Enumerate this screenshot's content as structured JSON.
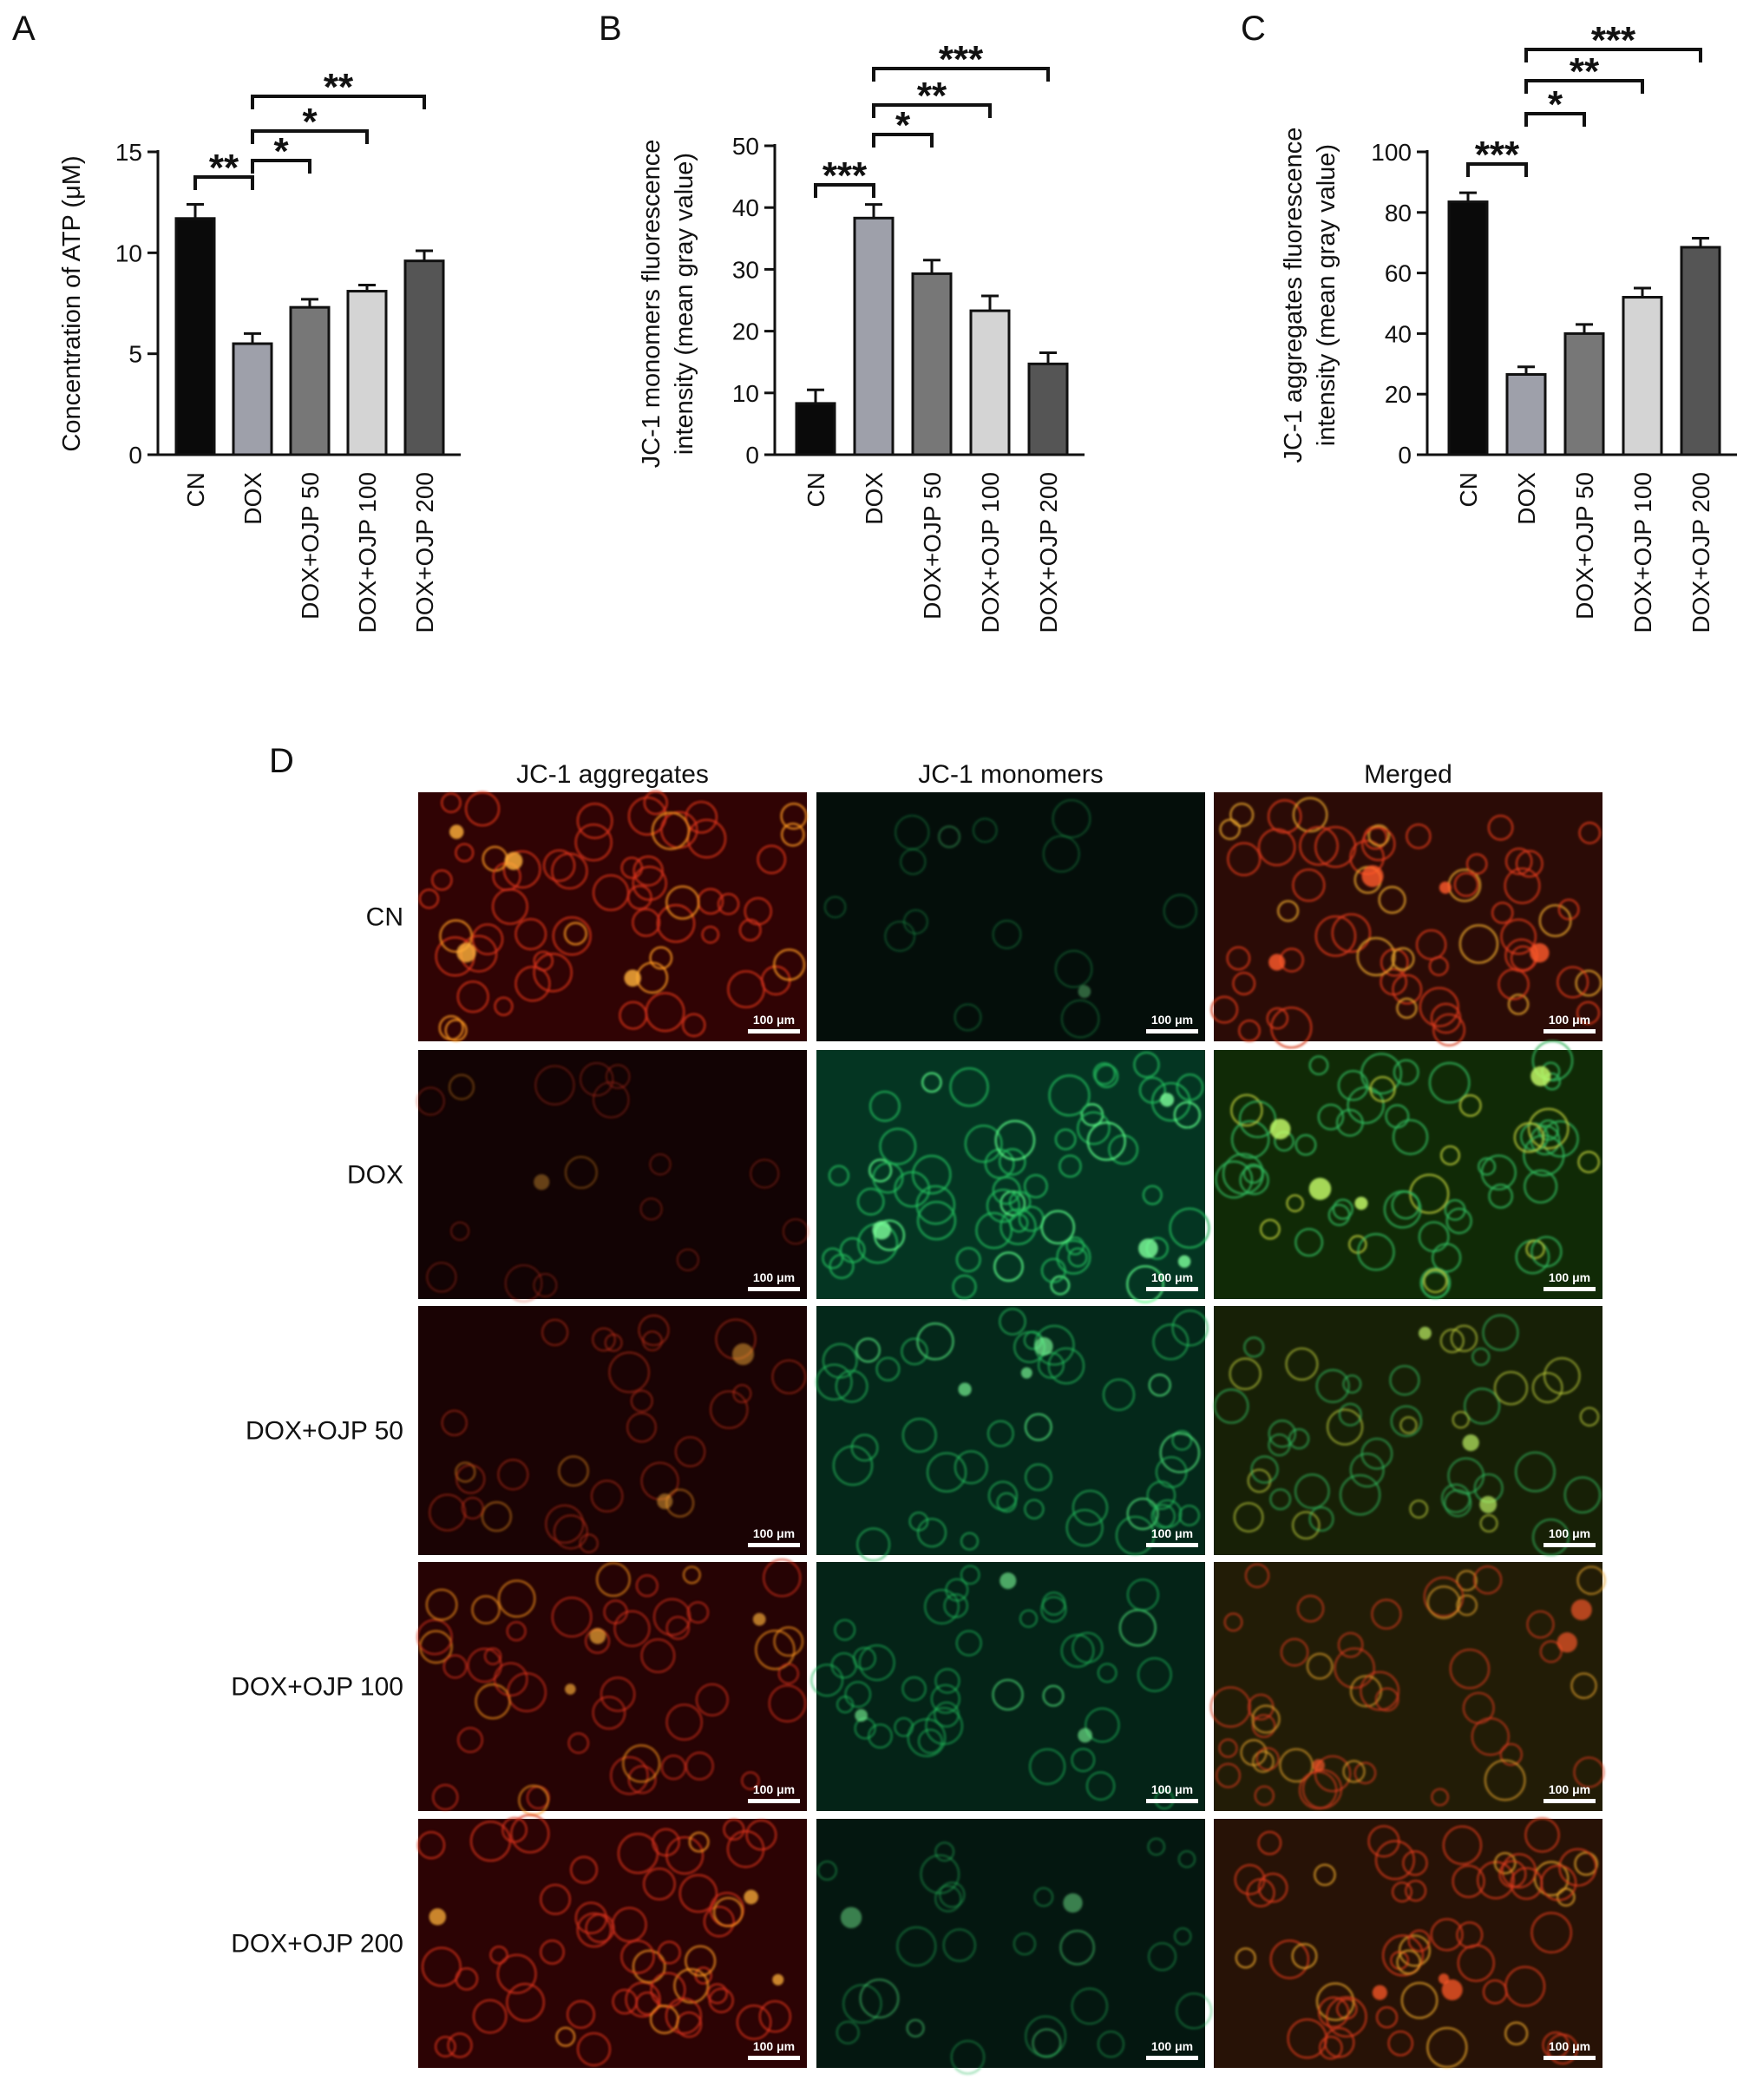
{
  "figure": {
    "panels": {
      "A": "A",
      "B": "B",
      "C": "C",
      "D": "D"
    },
    "categories": [
      "CN",
      "DOX",
      "DOX+OJP 50",
      "DOX+OJP 100",
      "DOX+OJP 200"
    ],
    "bar_colors": [
      "#0a0a0a",
      "#9ea0aa",
      "#777777",
      "#d4d4d4",
      "#555555"
    ]
  },
  "chart_data": [
    {
      "type": "bar",
      "panel": "A",
      "categories": [
        "CN",
        "DOX",
        "DOX+OJP 50",
        "DOX+OJP 100",
        "DOX+OJP 200"
      ],
      "values": [
        11.7,
        5.5,
        7.3,
        8.1,
        9.6
      ],
      "errors": [
        0.7,
        0.5,
        0.4,
        0.3,
        0.5
      ],
      "ylabel": "Concentration of ATP (μM)",
      "ylim": [
        0,
        15
      ],
      "yticks": [
        0,
        5,
        10,
        15
      ],
      "significance": [
        {
          "from": 0,
          "to": 1,
          "label": "**"
        },
        {
          "from": 1,
          "to": 2,
          "label": "*"
        },
        {
          "from": 1,
          "to": 3,
          "label": "*"
        },
        {
          "from": 1,
          "to": 4,
          "label": "**"
        }
      ]
    },
    {
      "type": "bar",
      "panel": "B",
      "categories": [
        "CN",
        "DOX",
        "DOX+OJP 50",
        "DOX+OJP 100",
        "DOX+OJP 200"
      ],
      "values": [
        8.3,
        38.3,
        29.3,
        23.3,
        14.7
      ],
      "errors": [
        2.2,
        2.2,
        2.2,
        2.4,
        1.8
      ],
      "ylabel_lines": [
        "JC-1 monomers fluorescence",
        "intensity (mean gray value)"
      ],
      "ylim": [
        0,
        50
      ],
      "yticks": [
        0,
        10,
        20,
        30,
        40,
        50
      ],
      "significance": [
        {
          "from": 0,
          "to": 1,
          "label": "***"
        },
        {
          "from": 1,
          "to": 2,
          "label": "*"
        },
        {
          "from": 1,
          "to": 3,
          "label": "**"
        },
        {
          "from": 1,
          "to": 4,
          "label": "***"
        }
      ]
    },
    {
      "type": "bar",
      "panel": "C",
      "categories": [
        "CN",
        "DOX",
        "DOX+OJP 50",
        "DOX+OJP 100",
        "DOX+OJP 200"
      ],
      "values": [
        83.5,
        26.5,
        40.0,
        52.0,
        68.5
      ],
      "errors": [
        3.0,
        2.5,
        3.0,
        3.0,
        3.0
      ],
      "ylabel_lines": [
        "JC-1 aggregates fluorescence",
        "intensity (mean gray value)"
      ],
      "ylim": [
        0,
        100
      ],
      "yticks": [
        0,
        20,
        40,
        60,
        80,
        100
      ],
      "significance": [
        {
          "from": 0,
          "to": 1,
          "label": "***"
        },
        {
          "from": 1,
          "to": 2,
          "label": "*"
        },
        {
          "from": 1,
          "to": 3,
          "label": "**"
        },
        {
          "from": 1,
          "to": 4,
          "label": "***"
        }
      ]
    }
  ],
  "micrographs": {
    "columns": [
      "JC-1 aggregates",
      "JC-1 monomers",
      "Merged"
    ],
    "rows": [
      "CN",
      "DOX",
      "DOX+OJP 50",
      "DOX+OJP 100",
      "DOX+OJP 200"
    ],
    "scale_bar": "100 μm",
    "aggregate_level": [
      0.85,
      0.1,
      0.3,
      0.6,
      0.75
    ],
    "monomer_level": [
      0.08,
      0.85,
      0.6,
      0.5,
      0.25
    ]
  }
}
